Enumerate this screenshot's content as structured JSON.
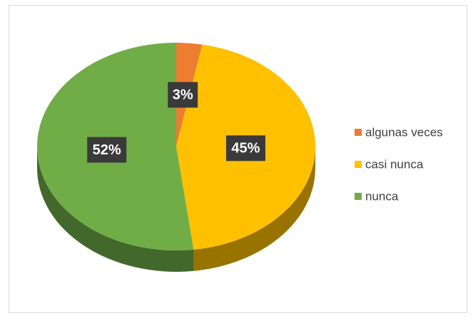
{
  "chart_data": {
    "type": "pie",
    "categories": [
      "algunas veces",
      "casi nunca",
      "nunca"
    ],
    "values": [
      3,
      45,
      52
    ],
    "value_labels": [
      "3%",
      "45%",
      "52%"
    ],
    "colors": [
      "#ED7D31",
      "#FFC000",
      "#70AD47"
    ],
    "legend": "right"
  }
}
